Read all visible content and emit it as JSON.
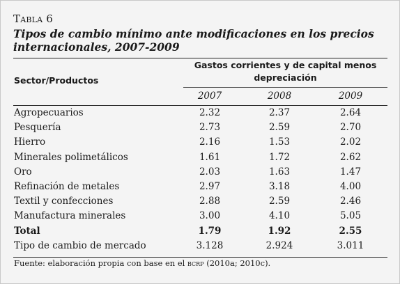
{
  "caption": {
    "label": "Tabla 6",
    "title": "Tipos de cambio mínimo ante modificaciones en los precios internacionales, 2007-2009"
  },
  "table": {
    "sector_header": "Sector/Productos",
    "group_header": "Gastos corrientes y de capital menos depreciación",
    "years": [
      "2007",
      "2008",
      "2009"
    ],
    "rows": [
      {
        "name": "Agropecuarios",
        "values": [
          "2.32",
          "2.37",
          "2.64"
        ]
      },
      {
        "name": "Pesquería",
        "values": [
          "2.73",
          "2.59",
          "2.70"
        ]
      },
      {
        "name": "Hierro",
        "values": [
          "2.16",
          "1.53",
          "2.02"
        ]
      },
      {
        "name": "Minerales polimetálicos",
        "values": [
          "1.61",
          "1.72",
          "2.62"
        ]
      },
      {
        "name": "Oro",
        "values": [
          "2.03",
          "1.63",
          "1.47"
        ]
      },
      {
        "name": "Refinación de metales",
        "values": [
          "2.97",
          "3.18",
          "4.00"
        ]
      },
      {
        "name": "Textil y confecciones",
        "values": [
          "2.88",
          "2.59",
          "2.46"
        ]
      },
      {
        "name": "Manufactura minerales",
        "values": [
          "3.00",
          "4.10",
          "5.05"
        ]
      },
      {
        "name": "Total",
        "values": [
          "1.79",
          "1.92",
          "2.55"
        ]
      },
      {
        "name": "Tipo de cambio de mercado",
        "values": [
          "3.128",
          "2.924",
          "3.011"
        ]
      }
    ]
  },
  "source": {
    "prefix": "Fuente: elaboración propia con base en el",
    "org": "bcrp",
    "suffix": "(2010a; 2010c)."
  }
}
